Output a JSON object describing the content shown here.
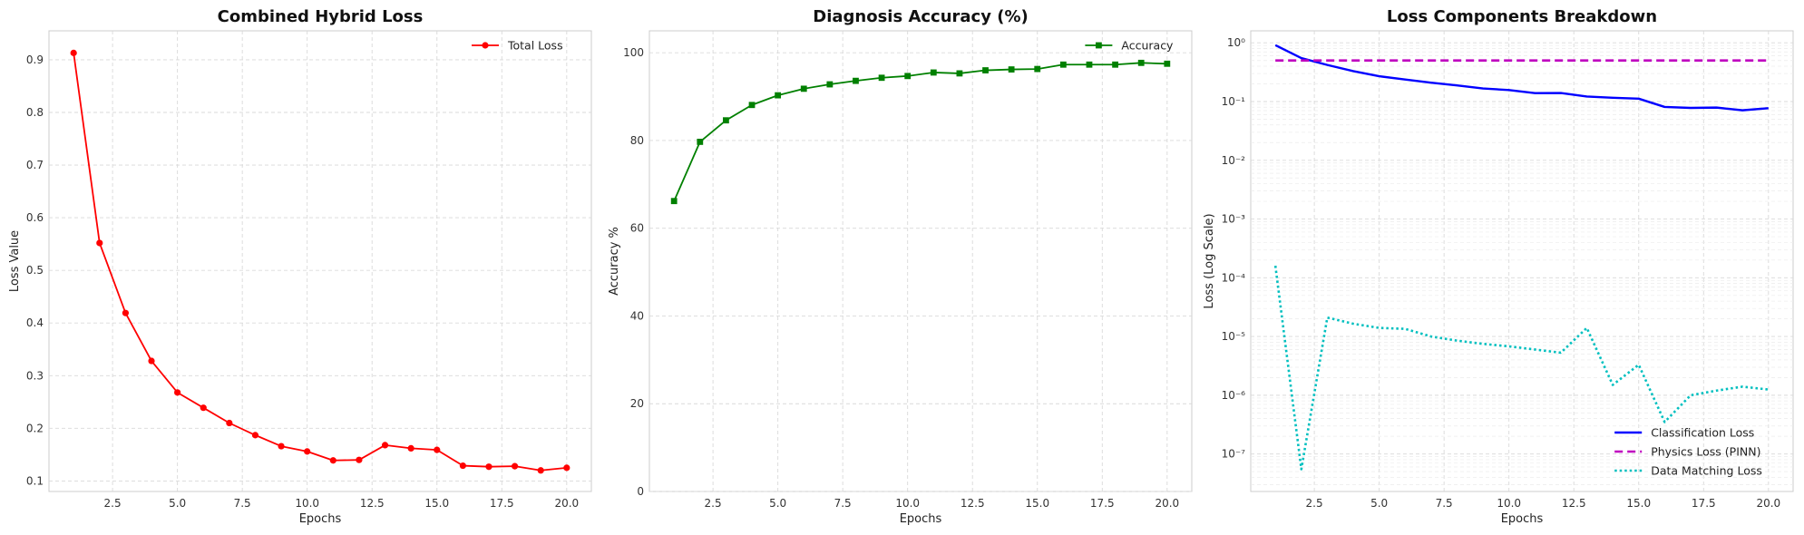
{
  "chart_data": [
    {
      "type": "line",
      "title": "Combined Hybrid Loss",
      "xlabel": "Epochs",
      "ylabel": "Loss Value",
      "xlim": [
        0.05,
        20.95
      ],
      "ylim": [
        0.08,
        0.955
      ],
      "xticks": [
        "2.5",
        "5.0",
        "7.5",
        "10.0",
        "12.5",
        "15.0",
        "17.5",
        "20.0"
      ],
      "yticks": [
        "0.1",
        "0.2",
        "0.3",
        "0.4",
        "0.5",
        "0.6",
        "0.7",
        "0.8",
        "0.9"
      ],
      "grid": true,
      "legend_position": "upper right",
      "series": [
        {
          "name": "Total Loss",
          "color": "#ff0000",
          "marker": "circle",
          "linestyle": "solid",
          "x": [
            1,
            2,
            3,
            4,
            5,
            6,
            7,
            8,
            9,
            10,
            11,
            12,
            13,
            14,
            15,
            16,
            17,
            18,
            19,
            20
          ],
          "y": [
            0.913,
            0.552,
            0.419,
            0.328,
            0.268,
            0.239,
            0.21,
            0.187,
            0.166,
            0.156,
            0.139,
            0.14,
            0.168,
            0.162,
            0.159,
            0.129,
            0.127,
            0.128,
            0.12,
            0.125
          ]
        }
      ]
    },
    {
      "type": "line",
      "title": "Diagnosis Accuracy (%)",
      "xlabel": "Epochs",
      "ylabel": "Accuracy %",
      "xlim": [
        0.05,
        20.95
      ],
      "ylim": [
        0,
        105
      ],
      "xticks": [
        "2.5",
        "5.0",
        "7.5",
        "10.0",
        "12.5",
        "15.0",
        "17.5",
        "20.0"
      ],
      "yticks": [
        "0",
        "20",
        "40",
        "60",
        "80",
        "100"
      ],
      "grid": true,
      "legend_position": "upper right",
      "series": [
        {
          "name": "Accuracy",
          "color": "#008000",
          "marker": "square",
          "linestyle": "solid",
          "x": [
            1,
            2,
            3,
            4,
            5,
            6,
            7,
            8,
            9,
            10,
            11,
            12,
            13,
            14,
            15,
            16,
            17,
            18,
            19,
            20
          ],
          "y": [
            66.2,
            79.7,
            84.6,
            88.1,
            90.3,
            91.8,
            92.8,
            93.6,
            94.3,
            94.7,
            95.5,
            95.3,
            96.0,
            96.2,
            96.3,
            97.3,
            97.3,
            97.3,
            97.7,
            97.5
          ]
        }
      ]
    },
    {
      "type": "line",
      "title": "Loss Components Breakdown",
      "xlabel": "Epochs",
      "ylabel": "Loss (Log Scale)",
      "yscale": "log",
      "xlim": [
        0.05,
        20.95
      ],
      "ylim": [
        2.3e-08,
        1.6
      ],
      "xticks": [
        "2.5",
        "5.0",
        "7.5",
        "10.0",
        "12.5",
        "15.0",
        "17.5",
        "20.0"
      ],
      "yticks": [
        "10⁰",
        "10⁻¹",
        "10⁻²",
        "10⁻³",
        "10⁻⁴",
        "10⁻⁵",
        "10⁻⁶",
        "10⁻⁷"
      ],
      "grid": true,
      "legend_position": "lower right",
      "series": [
        {
          "name": "Classification Loss",
          "color": "#0000ff",
          "linestyle": "solid",
          "x": [
            1,
            2,
            3,
            4,
            5,
            6,
            7,
            8,
            9,
            10,
            11,
            12,
            13,
            14,
            15,
            16,
            17,
            18,
            19,
            20
          ],
          "y": [
            0.913,
            0.55,
            0.42,
            0.33,
            0.27,
            0.237,
            0.21,
            0.188,
            0.167,
            0.157,
            0.139,
            0.14,
            0.122,
            0.116,
            0.112,
            0.081,
            0.078,
            0.079,
            0.071,
            0.077
          ]
        },
        {
          "name": "Physics Loss (PINN)",
          "color": "#bf00bf",
          "linestyle": "dashed",
          "x": [
            1,
            2,
            3,
            4,
            5,
            6,
            7,
            8,
            9,
            10,
            11,
            12,
            13,
            14,
            15,
            16,
            17,
            18,
            19,
            20
          ],
          "y": [
            0.5,
            0.5,
            0.5,
            0.5,
            0.5,
            0.5,
            0.5,
            0.5,
            0.5,
            0.5,
            0.5,
            0.5,
            0.5,
            0.5,
            0.5,
            0.5,
            0.5,
            0.5,
            0.5,
            0.5
          ]
        },
        {
          "name": "Data Matching Loss",
          "color": "#00bfbf",
          "linestyle": "dotted",
          "x": [
            1,
            2,
            3,
            4,
            5,
            6,
            7,
            8,
            9,
            10,
            11,
            12,
            13,
            14,
            15,
            16,
            17,
            18,
            19,
            20
          ],
          "y": [
            0.00016,
            5.5e-08,
            2.1e-05,
            1.65e-05,
            1.4e-05,
            1.35e-05,
            1e-05,
            8.5e-06,
            7.5e-06,
            6.8e-06,
            6e-06,
            5.3e-06,
            1.4e-05,
            1.5e-06,
            3.3e-06,
            3.5e-07,
            1e-06,
            1.2e-06,
            1.4e-06,
            1.25e-06
          ]
        }
      ]
    }
  ]
}
